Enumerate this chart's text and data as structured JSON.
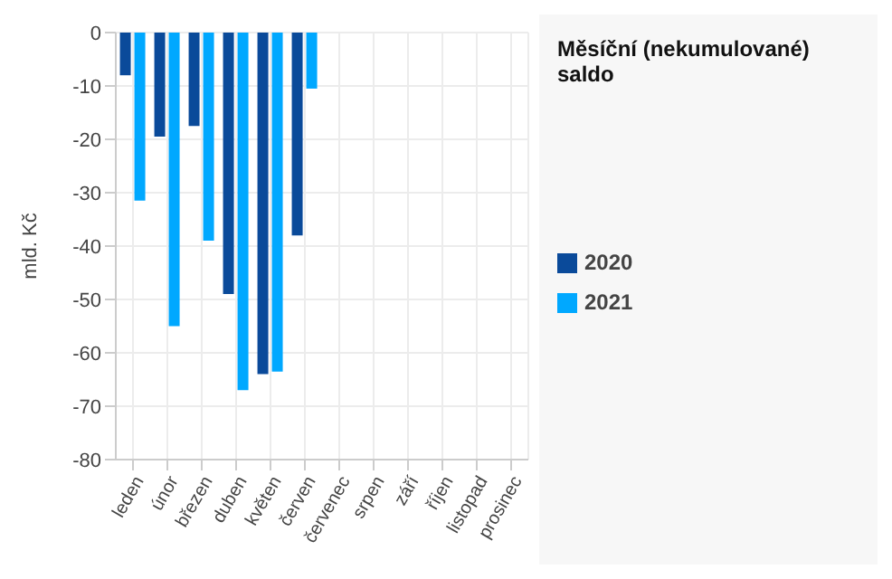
{
  "chart_data": {
    "type": "bar",
    "title": "Měsíční (nekumulované) saldo",
    "ylabel": "mld. Kč",
    "categories": [
      "leden",
      "únor",
      "březen",
      "duben",
      "květen",
      "červen",
      "červenec",
      "srpen",
      "září",
      "říjen",
      "listopad",
      "prosinec"
    ],
    "series": [
      {
        "name": "2020",
        "color": "#0a4a9a",
        "values": [
          -8,
          -19.5,
          -17.5,
          -49,
          -64,
          -38,
          null,
          null,
          null,
          null,
          null,
          null
        ]
      },
      {
        "name": "2021",
        "color": "#00a8ff",
        "values": [
          -31.5,
          -55,
          -39,
          -67,
          -63.5,
          -10.5,
          null,
          null,
          null,
          null,
          null,
          null
        ]
      }
    ],
    "ylim": [
      -80,
      0
    ],
    "yticks": [
      -80,
      -70,
      -60,
      -50,
      -40,
      -30,
      -20,
      -10,
      0
    ],
    "grid": true,
    "legend": "right"
  }
}
